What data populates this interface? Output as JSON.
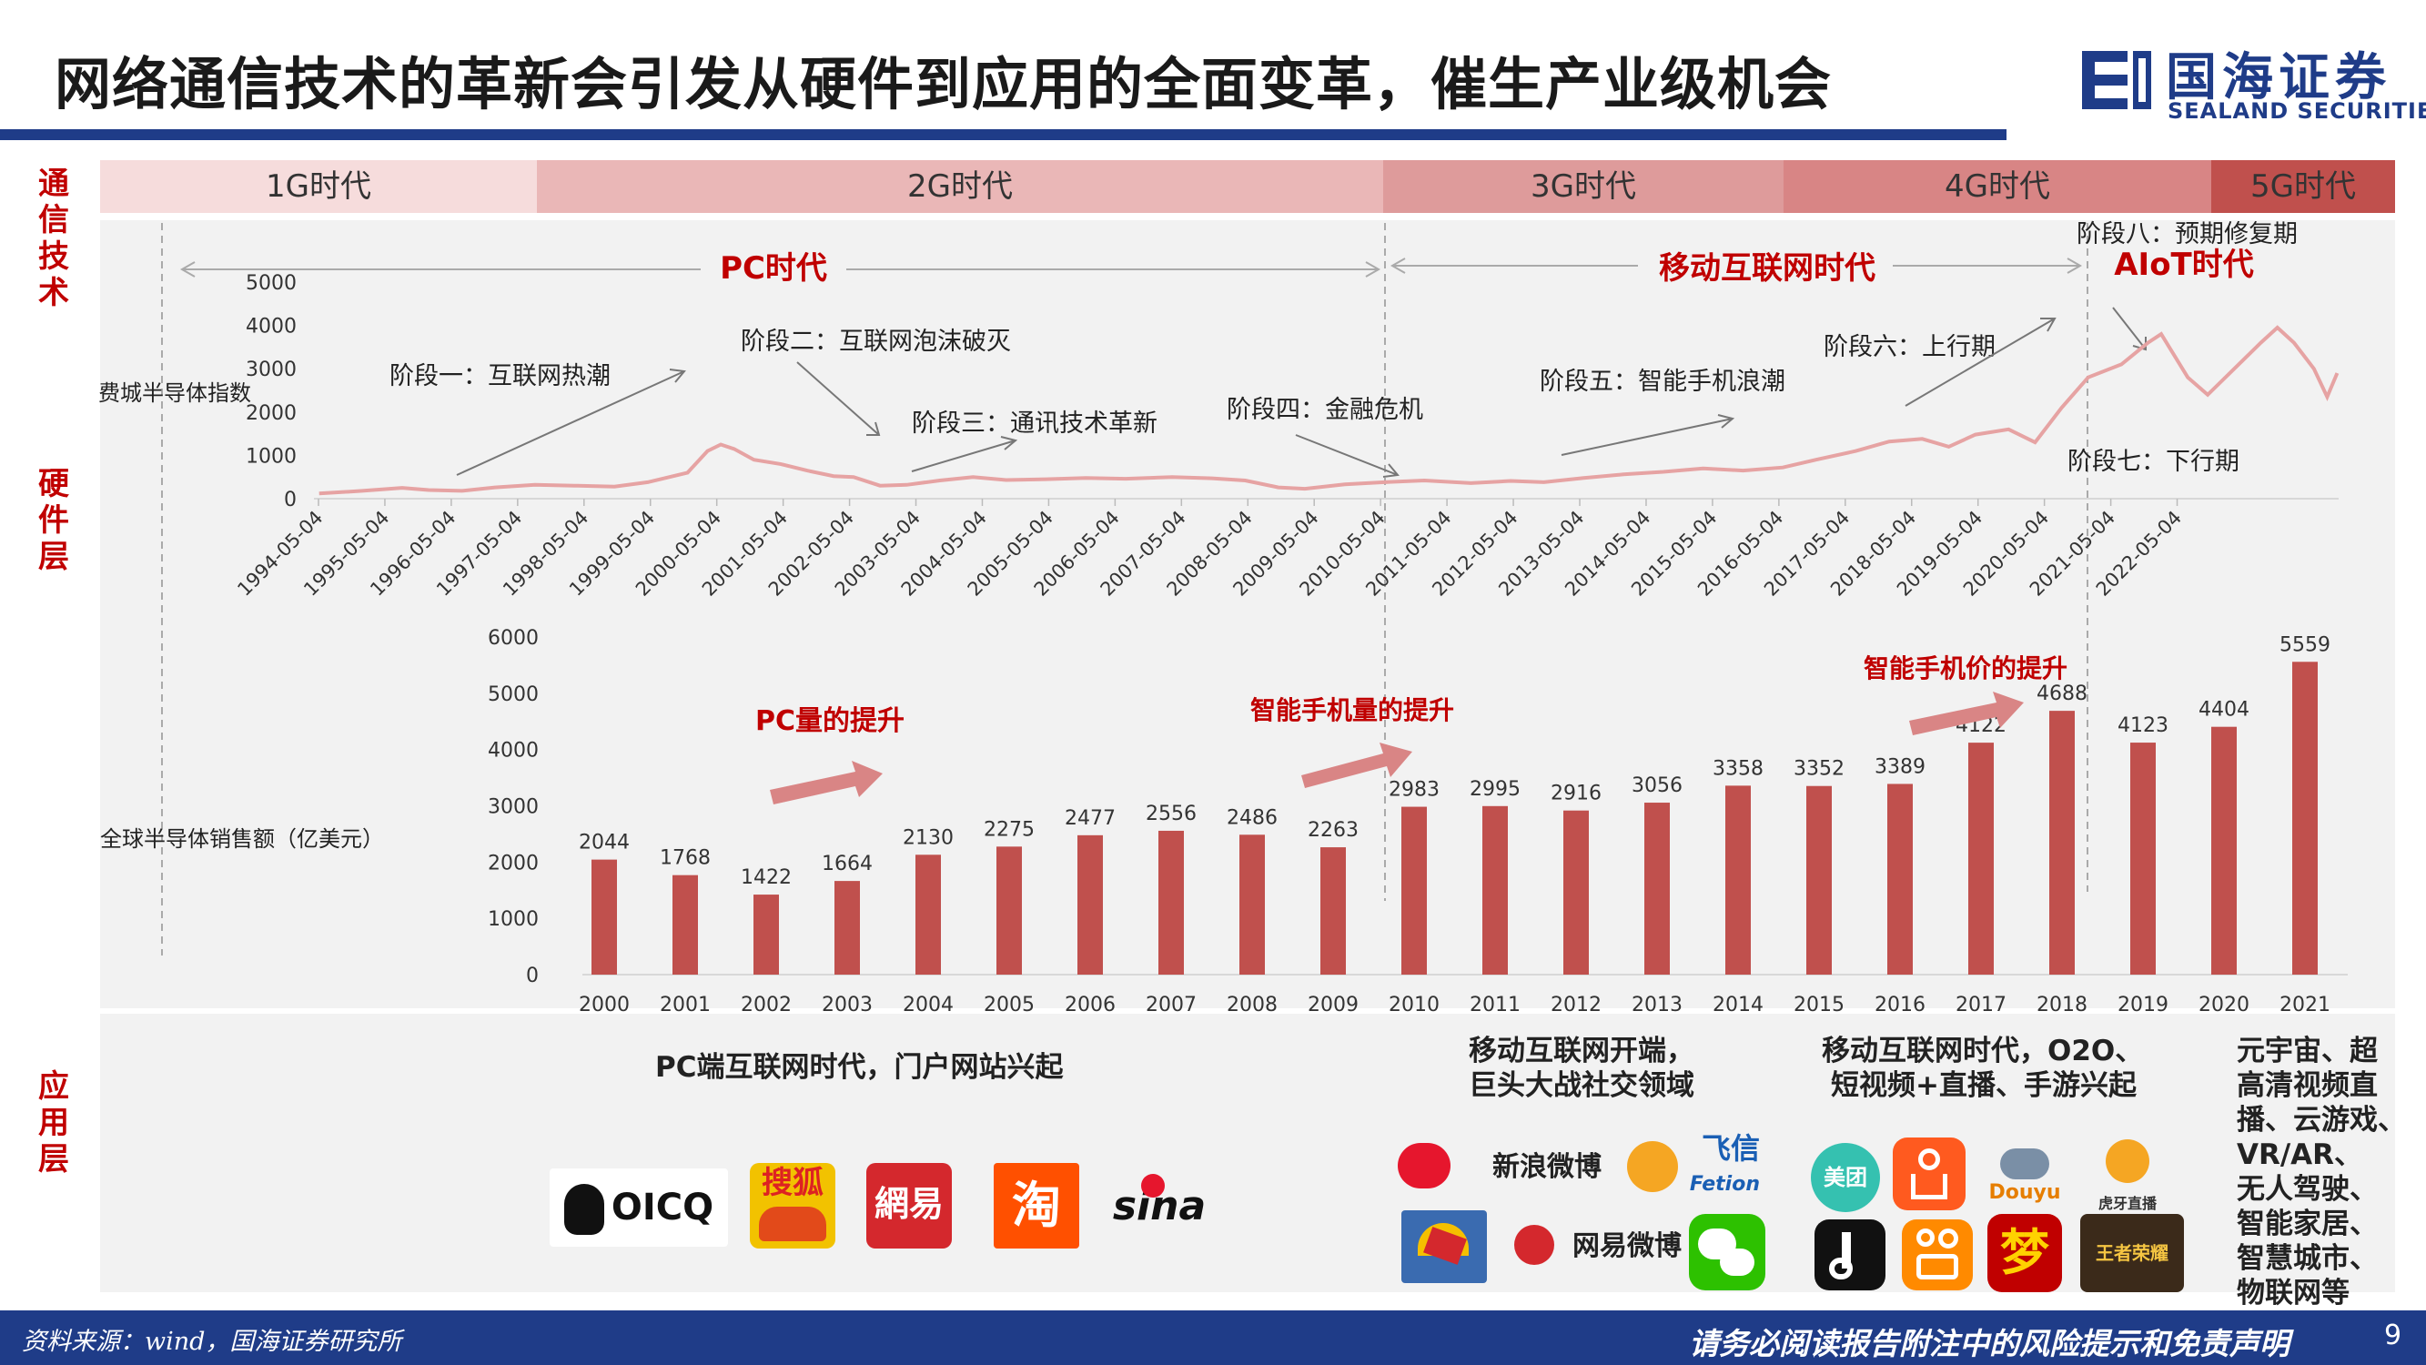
{
  "title": "网络通信技术的革新会引发从硬件到应用的全面变革，催生产业级机会",
  "logo": {
    "name": "国海证券",
    "en": "SEALAND SECURITIES"
  },
  "layers": {
    "comm": "通信技术",
    "hardware": "硬件层",
    "app": "应用层"
  },
  "eras": [
    "1G时代",
    "2G时代",
    "3G时代",
    "4G时代",
    "5G时代"
  ],
  "era_colors": [
    "#f6dcdc",
    "#eab7b7",
    "#de9b9b",
    "#d88585",
    "#c0504d"
  ],
  "epochs": {
    "pc": "PC时代",
    "mobile": "移动互联网时代",
    "aiot": "AIoT时代"
  },
  "stages": {
    "s1": "阶段一：互联网热潮",
    "s2": "阶段二：互联网泡沫破灭",
    "s3": "阶段三：通讯技术革新",
    "s4": "阶段四：金融危机",
    "s5": "阶段五：智能手机浪潮",
    "s6": "阶段六：上行期",
    "s7": "阶段七：下行期",
    "s8": "阶段八：预期修复期"
  },
  "drivers": {
    "pc": "PC量的提升",
    "phone_volume": "智能手机量的提升",
    "phone_price": "智能手机价的提升"
  },
  "chart_data": [
    {
      "type": "line",
      "ylabel": "费城半导体指数",
      "ylim": [
        0,
        5000
      ],
      "yticks": [
        0,
        1000,
        2000,
        3000,
        4000,
        5000
      ],
      "x": [
        "1994-05-04",
        "1995-05-04",
        "1996-05-04",
        "1997-05-04",
        "1998-05-04",
        "1999-05-04",
        "2000-05-04",
        "2001-05-04",
        "2002-05-04",
        "2003-05-04",
        "2004-05-04",
        "2005-05-04",
        "2006-05-04",
        "2007-05-04",
        "2008-05-04",
        "2009-05-04",
        "2010-05-04",
        "2011-05-04",
        "2012-05-04",
        "2013-05-04",
        "2014-05-04",
        "2015-05-04",
        "2016-05-04",
        "2017-05-04",
        "2018-05-04",
        "2019-05-04",
        "2020-05-04",
        "2021-05-04",
        "2022-05-04"
      ],
      "series": [
        {
          "color": "#e6a3a3",
          "values": [
            [
              1994.35,
              120
            ],
            [
              1995.0,
              180
            ],
            [
              1995.6,
              250
            ],
            [
              1996.0,
              200
            ],
            [
              1996.5,
              180
            ],
            [
              1997.0,
              260
            ],
            [
              1997.6,
              320
            ],
            [
              1998.2,
              300
            ],
            [
              1998.8,
              280
            ],
            [
              1999.3,
              380
            ],
            [
              1999.9,
              600
            ],
            [
              2000.2,
              1100
            ],
            [
              2000.4,
              1250
            ],
            [
              2000.6,
              1150
            ],
            [
              2000.9,
              900
            ],
            [
              2001.3,
              800
            ],
            [
              2001.7,
              650
            ],
            [
              2002.1,
              520
            ],
            [
              2002.4,
              500
            ],
            [
              2002.8,
              300
            ],
            [
              2003.2,
              320
            ],
            [
              2003.7,
              420
            ],
            [
              2004.2,
              500
            ],
            [
              2004.7,
              430
            ],
            [
              2005.3,
              450
            ],
            [
              2005.9,
              480
            ],
            [
              2006.5,
              460
            ],
            [
              2007.2,
              500
            ],
            [
              2007.8,
              470
            ],
            [
              2008.3,
              420
            ],
            [
              2008.8,
              260
            ],
            [
              2009.2,
              230
            ],
            [
              2009.8,
              330
            ],
            [
              2010.4,
              380
            ],
            [
              2011.0,
              420
            ],
            [
              2011.7,
              360
            ],
            [
              2012.3,
              410
            ],
            [
              2012.8,
              380
            ],
            [
              2013.4,
              480
            ],
            [
              2014.0,
              560
            ],
            [
              2014.6,
              620
            ],
            [
              2015.2,
              700
            ],
            [
              2015.8,
              650
            ],
            [
              2016.4,
              720
            ],
            [
              2016.9,
              900
            ],
            [
              2017.5,
              1100
            ],
            [
              2018.0,
              1320
            ],
            [
              2018.5,
              1380
            ],
            [
              2018.9,
              1200
            ],
            [
              2019.3,
              1480
            ],
            [
              2019.8,
              1600
            ],
            [
              2020.2,
              1300
            ],
            [
              2020.6,
              2100
            ],
            [
              2021.0,
              2800
            ],
            [
              2021.5,
              3100
            ],
            [
              2021.9,
              3600
            ],
            [
              2022.1,
              3800
            ],
            [
              2022.5,
              2800
            ],
            [
              2022.8,
              2400
            ],
            [
              2023.0,
              2700
            ],
            [
              2023.3,
              3150
            ],
            [
              2023.6,
              3600
            ],
            [
              2023.85,
              3950
            ],
            [
              2024.1,
              3600
            ],
            [
              2024.4,
              3000
            ],
            [
              2024.6,
              2350
            ],
            [
              2024.75,
              2900
            ]
          ]
        }
      ]
    },
    {
      "type": "bar",
      "ylabel": "全球半导体销售额（亿美元）",
      "ylim": [
        0,
        6000
      ],
      "yticks": [
        0,
        1000,
        2000,
        3000,
        4000,
        5000,
        6000
      ],
      "categories": [
        "2000",
        "2001",
        "2002",
        "2003",
        "2004",
        "2005",
        "2006",
        "2007",
        "2008",
        "2009",
        "2010",
        "2011",
        "2012",
        "2013",
        "2014",
        "2015",
        "2016",
        "2017",
        "2018",
        "2019",
        "2020",
        "2021"
      ],
      "values": [
        2044,
        1768,
        1422,
        1664,
        2130,
        2275,
        2477,
        2556,
        2486,
        2263,
        2983,
        2995,
        2916,
        3056,
        3358,
        3352,
        3389,
        4122,
        4688,
        4123,
        4404,
        5559
      ],
      "color": "#c0504d"
    }
  ],
  "apps": {
    "pc_text": "PC端互联网时代，门户网站兴起",
    "mobile_start": [
      "移动互联网开端，",
      "巨头大战社交领域"
    ],
    "mobile_era": [
      "移动互联网时代，O2O、",
      "短视频+直播、手游兴起"
    ],
    "future": [
      "元宇宙、超",
      "高清视频直",
      "播、云游戏、",
      "VR/AR、",
      "无人驾驶、",
      "智能家居、",
      "智慧城市、",
      "物联网等"
    ],
    "logos": [
      {
        "icon": "oicq-logo",
        "text": "OICQ"
      },
      {
        "icon": "sohu-logo",
        "text": "搜狐"
      },
      {
        "icon": "netease-logo",
        "text": "網易"
      },
      {
        "icon": "taobao-logo",
        "text": "淘"
      },
      {
        "icon": "sina-logo",
        "text": "sina"
      },
      {
        "icon": "weibo-logo",
        "text": "新浪微博"
      },
      {
        "icon": "fetion-logo",
        "text": "飞信"
      },
      {
        "icon": "fetion-en",
        "text": "Fetion"
      },
      {
        "icon": "meituan-logo",
        "text": "美团"
      },
      {
        "icon": "netease-weibo-logo",
        "text": "网易微博"
      },
      {
        "icon": "douyu-logo",
        "text": "Douyu"
      },
      {
        "icon": "huya-logo",
        "text": "虎牙直播"
      },
      {
        "icon": "honor-of-kings-logo",
        "text": "王者荣耀"
      }
    ]
  },
  "footer": {
    "source": "资料来源：wind，国海证券研究所",
    "disclaimer": "请务必阅读报告附注中的风险提示和免责声明",
    "page": "9"
  }
}
